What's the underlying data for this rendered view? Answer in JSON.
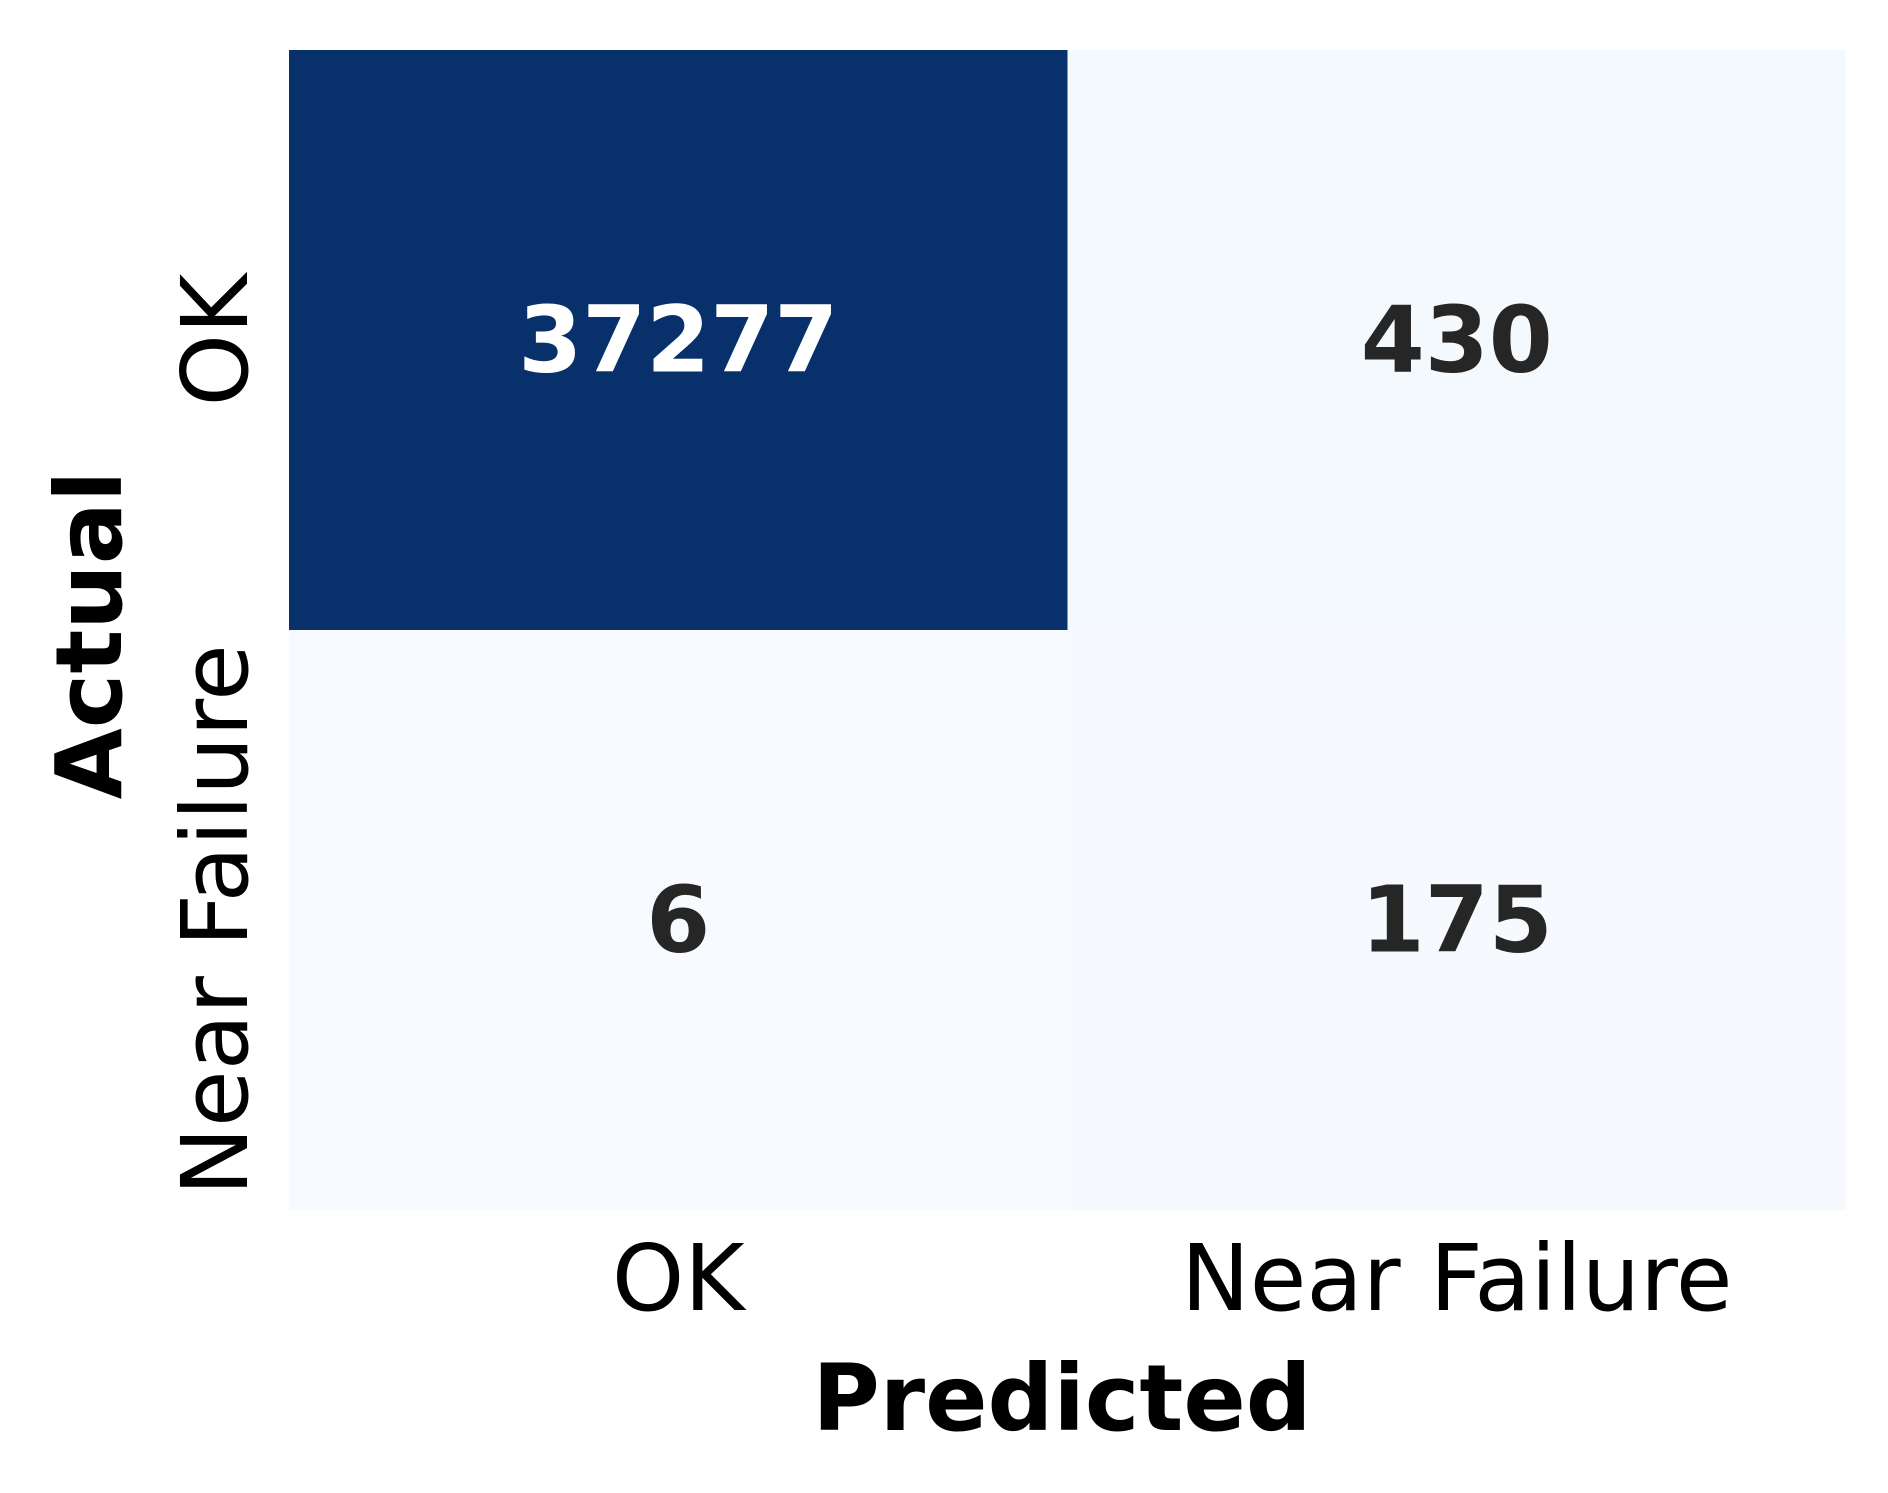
{
  "chart_data": {
    "type": "heatmap",
    "title": "",
    "xlabel": "Predicted",
    "ylabel": "Actual",
    "x_categories": [
      "OK",
      "Near Failure"
    ],
    "y_categories": [
      "OK",
      "Near Failure"
    ],
    "values": [
      [
        37277,
        430
      ],
      [
        6,
        175
      ]
    ],
    "colormap": {
      "low": "#f7fbff",
      "high": "#08306b"
    },
    "annotation_colors": {
      "on_dark": "#ffffff",
      "on_light": "#262626"
    },
    "colorbar": false,
    "grid": false
  }
}
